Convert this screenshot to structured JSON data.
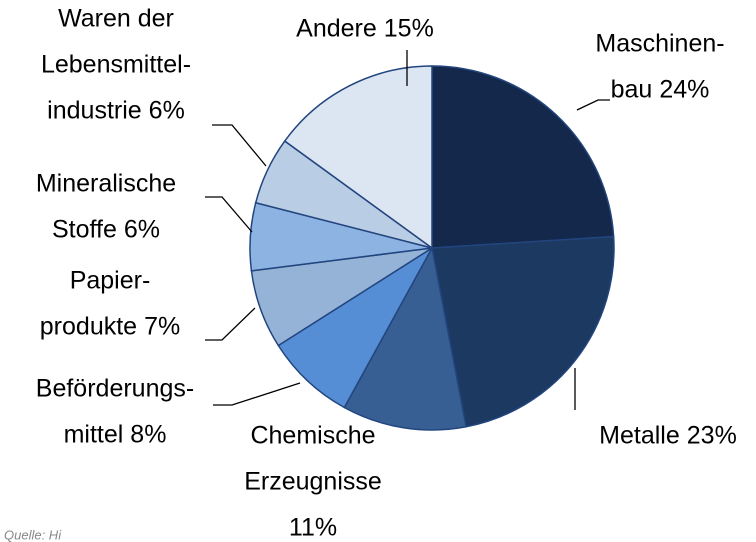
{
  "chart_data": {
    "type": "pie",
    "categories": [
      [
        "Maschinen-",
        "bau"
      ],
      [
        "Metalle"
      ],
      [
        "Chemische",
        "Erzeugnisse"
      ],
      [
        "Beförderungs-",
        "mittel"
      ],
      [
        "Papier-",
        "produkte"
      ],
      [
        "Mineralische",
        "Stoffe"
      ],
      [
        "Waren der",
        "Lebensmittel-",
        "industrie"
      ],
      [
        "Andere"
      ]
    ],
    "values": [
      24,
      23,
      11,
      8,
      7,
      6,
      6,
      15
    ],
    "value_labels": [
      "24%",
      "23%",
      "11%",
      "8%",
      "7%",
      "6%",
      "6%",
      "15%"
    ],
    "colors": [
      "#13284a",
      "#1b3961",
      "#375f93",
      "#558ed5",
      "#95b3d7",
      "#8db3e2",
      "#b9cde5",
      "#dce6f2"
    ],
    "source": "Quelle: Hi"
  }
}
